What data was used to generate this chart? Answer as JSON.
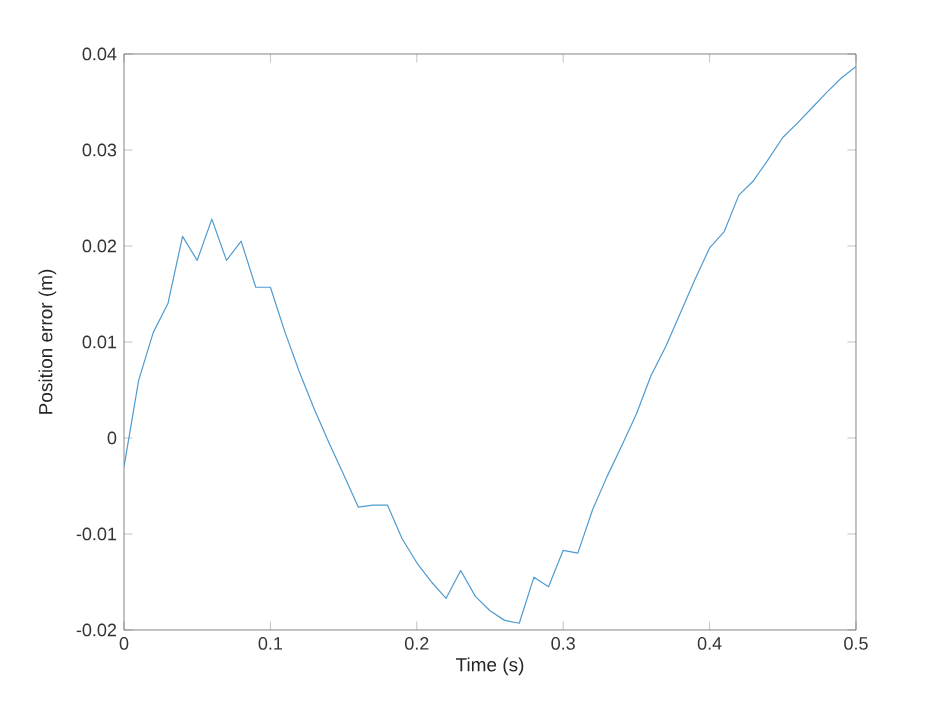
{
  "chart_data": {
    "type": "line",
    "xlabel": "Time (s)",
    "ylabel": "Position error (m)",
    "xlim": [
      0,
      0.5
    ],
    "ylim": [
      -0.02,
      0.04
    ],
    "xticks": [
      0,
      0.1,
      0.2,
      0.3,
      0.4,
      0.5
    ],
    "yticks": [
      -0.02,
      -0.01,
      0,
      0.01,
      0.02,
      0.03,
      0.04
    ],
    "marker": "none",
    "line_style": "solid",
    "series": [
      {
        "color": "#4f9bd0",
        "x": [
          0,
          0.01,
          0.02,
          0.03,
          0.04,
          0.05,
          0.06,
          0.07,
          0.08,
          0.09,
          0.1,
          0.11,
          0.12,
          0.13,
          0.14,
          0.15,
          0.16,
          0.17,
          0.18,
          0.19,
          0.2,
          0.21,
          0.22,
          0.23,
          0.24,
          0.25,
          0.26,
          0.27,
          0.28,
          0.29,
          0.3,
          0.31,
          0.32,
          0.33,
          0.34,
          0.35,
          0.36,
          0.37,
          0.38,
          0.39,
          0.4,
          0.41,
          0.42,
          0.43,
          0.44,
          0.45,
          0.46,
          0.47,
          0.48,
          0.49,
          0.5
        ],
        "values": [
          -0.003,
          0.006,
          0.011,
          0.014,
          0.021,
          0.0185,
          0.0228,
          0.0185,
          0.0205,
          0.0157,
          0.0157,
          0.011,
          0.0068,
          0.003,
          -0.0005,
          -0.0038,
          -0.0072,
          -0.007,
          -0.007,
          -0.0105,
          -0.013,
          -0.015,
          -0.0167,
          -0.0138,
          -0.0165,
          -0.018,
          -0.019,
          -0.0193,
          -0.0145,
          -0.0155,
          -0.0117,
          -0.012,
          -0.0075,
          -0.004,
          -0.0008,
          0.0025,
          0.0065,
          0.0095,
          0.013,
          0.0165,
          0.0198,
          0.0215,
          0.0253,
          0.0268,
          0.029,
          0.0313,
          0.0328,
          0.0344,
          0.036,
          0.0375,
          0.0387
        ]
      }
    ]
  }
}
